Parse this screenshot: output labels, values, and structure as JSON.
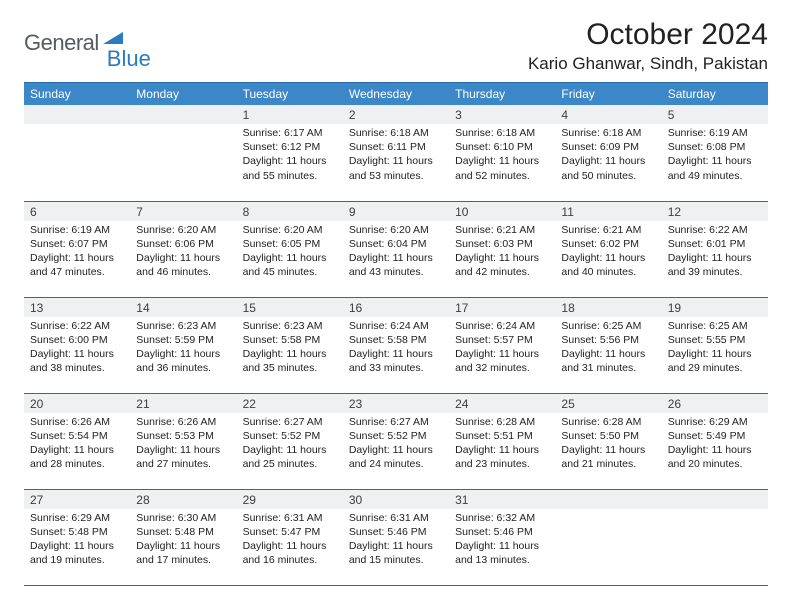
{
  "brand": {
    "text1": "General",
    "text2": "Blue"
  },
  "title": "October 2024",
  "location": "Kario Ghanwar, Sindh, Pakistan",
  "colors": {
    "header_bg": "#3b87c8",
    "header_text": "#ffffff",
    "daynum_bg": "#eef0f1",
    "rule": "#2a6aa2",
    "brand_gray": "#555b61",
    "brand_blue": "#2b7bbf"
  },
  "week_headers": [
    "Sunday",
    "Monday",
    "Tuesday",
    "Wednesday",
    "Thursday",
    "Friday",
    "Saturday"
  ],
  "weeks": [
    [
      {
        "num": "",
        "sunrise": "",
        "sunset": "",
        "daylight": ""
      },
      {
        "num": "",
        "sunrise": "",
        "sunset": "",
        "daylight": ""
      },
      {
        "num": "1",
        "sunrise": "Sunrise: 6:17 AM",
        "sunset": "Sunset: 6:12 PM",
        "daylight": "Daylight: 11 hours and 55 minutes."
      },
      {
        "num": "2",
        "sunrise": "Sunrise: 6:18 AM",
        "sunset": "Sunset: 6:11 PM",
        "daylight": "Daylight: 11 hours and 53 minutes."
      },
      {
        "num": "3",
        "sunrise": "Sunrise: 6:18 AM",
        "sunset": "Sunset: 6:10 PM",
        "daylight": "Daylight: 11 hours and 52 minutes."
      },
      {
        "num": "4",
        "sunrise": "Sunrise: 6:18 AM",
        "sunset": "Sunset: 6:09 PM",
        "daylight": "Daylight: 11 hours and 50 minutes."
      },
      {
        "num": "5",
        "sunrise": "Sunrise: 6:19 AM",
        "sunset": "Sunset: 6:08 PM",
        "daylight": "Daylight: 11 hours and 49 minutes."
      }
    ],
    [
      {
        "num": "6",
        "sunrise": "Sunrise: 6:19 AM",
        "sunset": "Sunset: 6:07 PM",
        "daylight": "Daylight: 11 hours and 47 minutes."
      },
      {
        "num": "7",
        "sunrise": "Sunrise: 6:20 AM",
        "sunset": "Sunset: 6:06 PM",
        "daylight": "Daylight: 11 hours and 46 minutes."
      },
      {
        "num": "8",
        "sunrise": "Sunrise: 6:20 AM",
        "sunset": "Sunset: 6:05 PM",
        "daylight": "Daylight: 11 hours and 45 minutes."
      },
      {
        "num": "9",
        "sunrise": "Sunrise: 6:20 AM",
        "sunset": "Sunset: 6:04 PM",
        "daylight": "Daylight: 11 hours and 43 minutes."
      },
      {
        "num": "10",
        "sunrise": "Sunrise: 6:21 AM",
        "sunset": "Sunset: 6:03 PM",
        "daylight": "Daylight: 11 hours and 42 minutes."
      },
      {
        "num": "11",
        "sunrise": "Sunrise: 6:21 AM",
        "sunset": "Sunset: 6:02 PM",
        "daylight": "Daylight: 11 hours and 40 minutes."
      },
      {
        "num": "12",
        "sunrise": "Sunrise: 6:22 AM",
        "sunset": "Sunset: 6:01 PM",
        "daylight": "Daylight: 11 hours and 39 minutes."
      }
    ],
    [
      {
        "num": "13",
        "sunrise": "Sunrise: 6:22 AM",
        "sunset": "Sunset: 6:00 PM",
        "daylight": "Daylight: 11 hours and 38 minutes."
      },
      {
        "num": "14",
        "sunrise": "Sunrise: 6:23 AM",
        "sunset": "Sunset: 5:59 PM",
        "daylight": "Daylight: 11 hours and 36 minutes."
      },
      {
        "num": "15",
        "sunrise": "Sunrise: 6:23 AM",
        "sunset": "Sunset: 5:58 PM",
        "daylight": "Daylight: 11 hours and 35 minutes."
      },
      {
        "num": "16",
        "sunrise": "Sunrise: 6:24 AM",
        "sunset": "Sunset: 5:58 PM",
        "daylight": "Daylight: 11 hours and 33 minutes."
      },
      {
        "num": "17",
        "sunrise": "Sunrise: 6:24 AM",
        "sunset": "Sunset: 5:57 PM",
        "daylight": "Daylight: 11 hours and 32 minutes."
      },
      {
        "num": "18",
        "sunrise": "Sunrise: 6:25 AM",
        "sunset": "Sunset: 5:56 PM",
        "daylight": "Daylight: 11 hours and 31 minutes."
      },
      {
        "num": "19",
        "sunrise": "Sunrise: 6:25 AM",
        "sunset": "Sunset: 5:55 PM",
        "daylight": "Daylight: 11 hours and 29 minutes."
      }
    ],
    [
      {
        "num": "20",
        "sunrise": "Sunrise: 6:26 AM",
        "sunset": "Sunset: 5:54 PM",
        "daylight": "Daylight: 11 hours and 28 minutes."
      },
      {
        "num": "21",
        "sunrise": "Sunrise: 6:26 AM",
        "sunset": "Sunset: 5:53 PM",
        "daylight": "Daylight: 11 hours and 27 minutes."
      },
      {
        "num": "22",
        "sunrise": "Sunrise: 6:27 AM",
        "sunset": "Sunset: 5:52 PM",
        "daylight": "Daylight: 11 hours and 25 minutes."
      },
      {
        "num": "23",
        "sunrise": "Sunrise: 6:27 AM",
        "sunset": "Sunset: 5:52 PM",
        "daylight": "Daylight: 11 hours and 24 minutes."
      },
      {
        "num": "24",
        "sunrise": "Sunrise: 6:28 AM",
        "sunset": "Sunset: 5:51 PM",
        "daylight": "Daylight: 11 hours and 23 minutes."
      },
      {
        "num": "25",
        "sunrise": "Sunrise: 6:28 AM",
        "sunset": "Sunset: 5:50 PM",
        "daylight": "Daylight: 11 hours and 21 minutes."
      },
      {
        "num": "26",
        "sunrise": "Sunrise: 6:29 AM",
        "sunset": "Sunset: 5:49 PM",
        "daylight": "Daylight: 11 hours and 20 minutes."
      }
    ],
    [
      {
        "num": "27",
        "sunrise": "Sunrise: 6:29 AM",
        "sunset": "Sunset: 5:48 PM",
        "daylight": "Daylight: 11 hours and 19 minutes."
      },
      {
        "num": "28",
        "sunrise": "Sunrise: 6:30 AM",
        "sunset": "Sunset: 5:48 PM",
        "daylight": "Daylight: 11 hours and 17 minutes."
      },
      {
        "num": "29",
        "sunrise": "Sunrise: 6:31 AM",
        "sunset": "Sunset: 5:47 PM",
        "daylight": "Daylight: 11 hours and 16 minutes."
      },
      {
        "num": "30",
        "sunrise": "Sunrise: 6:31 AM",
        "sunset": "Sunset: 5:46 PM",
        "daylight": "Daylight: 11 hours and 15 minutes."
      },
      {
        "num": "31",
        "sunrise": "Sunrise: 6:32 AM",
        "sunset": "Sunset: 5:46 PM",
        "daylight": "Daylight: 11 hours and 13 minutes."
      },
      {
        "num": "",
        "sunrise": "",
        "sunset": "",
        "daylight": ""
      },
      {
        "num": "",
        "sunrise": "",
        "sunset": "",
        "daylight": ""
      }
    ]
  ]
}
